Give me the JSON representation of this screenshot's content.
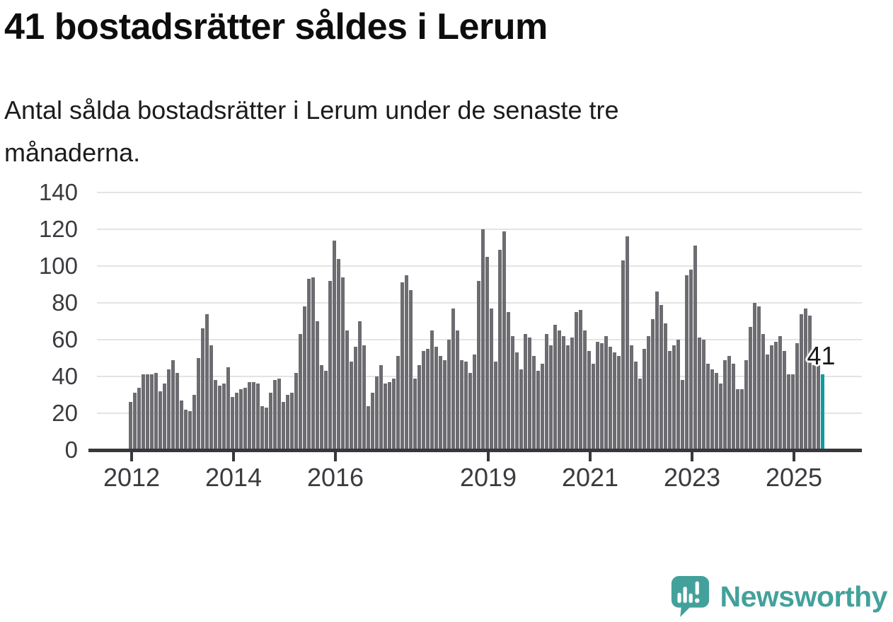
{
  "header": {
    "title": "41 bostadsrätter såldes i Lerum",
    "subtitle_line1": "Antal sålda bostadsrätter i Lerum under de senaste tre",
    "subtitle_line2": "månaderna."
  },
  "chart_data": {
    "type": "bar",
    "title": "41 bostadsrätter såldes i Lerum",
    "x_unit": "months, Jan 2012 – 2025",
    "values": [
      26,
      31,
      34,
      41,
      41,
      41,
      42,
      32,
      36,
      44,
      49,
      42,
      27,
      22,
      21,
      30,
      50,
      66,
      74,
      57,
      38,
      35,
      36,
      45,
      29,
      31,
      33,
      34,
      37,
      37,
      36,
      24,
      23,
      31,
      38,
      39,
      26,
      30,
      31,
      42,
      63,
      78,
      93,
      94,
      70,
      46,
      43,
      92,
      114,
      104,
      94,
      65,
      48,
      56,
      70,
      57,
      24,
      31,
      40,
      46,
      36,
      37,
      39,
      51,
      91,
      95,
      87,
      39,
      46,
      54,
      55,
      65,
      56,
      51,
      49,
      60,
      77,
      65,
      49,
      48,
      42,
      52,
      92,
      120,
      105,
      77,
      48,
      109,
      119,
      75,
      62,
      53,
      44,
      63,
      61,
      51,
      43,
      47,
      63,
      57,
      68,
      65,
      62,
      57,
      61,
      75,
      76,
      65,
      54,
      47,
      59,
      58,
      62,
      56,
      53,
      51,
      103,
      116,
      57,
      48,
      39,
      55,
      62,
      71,
      86,
      79,
      69,
      54,
      57,
      60,
      38,
      95,
      98,
      111,
      61,
      60,
      47,
      44,
      42,
      36,
      49,
      51,
      47,
      33,
      33,
      49,
      67,
      80,
      78,
      63,
      52,
      57,
      59,
      62,
      54,
      41,
      41,
      58,
      74,
      77,
      73,
      46,
      46,
      41
    ],
    "highlight_index": 163,
    "highlight_label": "41",
    "yticks": [
      0,
      20,
      40,
      60,
      80,
      100,
      120,
      140
    ],
    "ylim": [
      0,
      140
    ],
    "xticks": [
      {
        "label": "2012",
        "index": 0
      },
      {
        "label": "2014",
        "index": 24
      },
      {
        "label": "2016",
        "index": 48
      },
      {
        "label": "2019",
        "index": 84
      },
      {
        "label": "2021",
        "index": 108
      },
      {
        "label": "2023",
        "index": 132
      },
      {
        "label": "2025",
        "index": 156
      }
    ],
    "grid": true,
    "legend": "none",
    "bar_color": "#6c6c71",
    "highlight_color": "#0f9b9f"
  },
  "footer": {
    "brand": "Newsworthy",
    "brand_color": "#43a19b",
    "logo_icon": "speech-bubble-bar-chart-icon"
  }
}
